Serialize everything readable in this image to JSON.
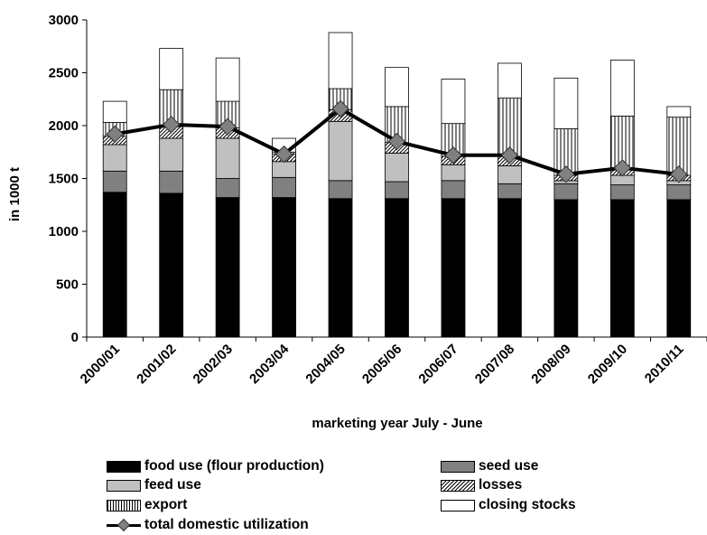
{
  "chart_data": {
    "type": "bar",
    "stacked": true,
    "title": "",
    "xlabel": "marketing year July - June",
    "ylabel": "in 1000 t",
    "ylim": [
      0,
      3000
    ],
    "yticks": [
      "0",
      "500",
      "1000",
      "1500",
      "2000",
      "2500",
      "3000"
    ],
    "categories": [
      "2000/01",
      "2001/02",
      "2002/03",
      "2003/04",
      "2004/05",
      "2005/06",
      "2006/07",
      "2007/08",
      "2008/09",
      "2009/10",
      "2010/11"
    ],
    "series": [
      {
        "name": "food use (flour production)",
        "color": "#000000",
        "pattern": "solid",
        "values": [
          1370,
          1360,
          1320,
          1320,
          1310,
          1310,
          1310,
          1310,
          1300,
          1300,
          1300
        ]
      },
      {
        "name": "seed use",
        "color": "#808080",
        "pattern": "solid",
        "values": [
          200,
          210,
          180,
          190,
          170,
          160,
          170,
          140,
          150,
          140,
          140
        ]
      },
      {
        "name": "feed use",
        "color": "#c0c0c0",
        "pattern": "solid",
        "values": [
          250,
          310,
          380,
          150,
          560,
          270,
          150,
          170,
          30,
          90,
          40
        ]
      },
      {
        "name": "losses",
        "color": "#ffffff",
        "pattern": "diagonal",
        "values": [
          80,
          110,
          100,
          70,
          110,
          100,
          80,
          90,
          50,
          60,
          50
        ]
      },
      {
        "name": "export",
        "color": "#ffffff",
        "pattern": "vertical",
        "values": [
          130,
          350,
          250,
          20,
          200,
          340,
          310,
          550,
          440,
          500,
          550
        ]
      },
      {
        "name": "closing stocks",
        "color": "#ffffff",
        "pattern": "solid",
        "values": [
          200,
          390,
          410,
          130,
          530,
          370,
          420,
          330,
          480,
          530,
          100
        ]
      }
    ],
    "line_series": {
      "name": "total domestic utilization",
      "color": "#000000",
      "marker": "diamond",
      "marker_color": "#808080",
      "values": [
        1920,
        2010,
        1990,
        1730,
        2160,
        1850,
        1720,
        1720,
        1540,
        1600,
        1540
      ]
    },
    "grid": false,
    "legend_position": "bottom"
  },
  "legend": {
    "items": [
      {
        "label": "food use (flour production)",
        "key": "food"
      },
      {
        "label": "seed use",
        "key": "seed"
      },
      {
        "label": "feed use",
        "key": "feed"
      },
      {
        "label": "losses",
        "key": "losses"
      },
      {
        "label": "export",
        "key": "export"
      },
      {
        "label": "closing stocks",
        "key": "stocks"
      },
      {
        "label": "total domestic utilization",
        "key": "total"
      }
    ]
  }
}
